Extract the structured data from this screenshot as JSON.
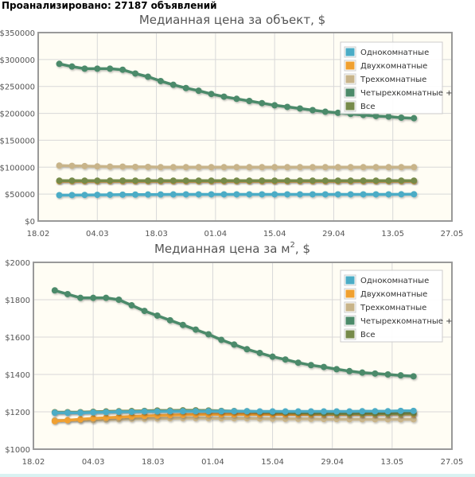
{
  "header": {
    "label": "Проанализировано:",
    "count": "27187",
    "unit": "объявлений"
  },
  "colors": {
    "odno": "#4bacc6",
    "dvuh": "#f0a030",
    "treh": "#c8b48a",
    "chetyreh": "#4b8a6a",
    "vse": "#768a4a",
    "plot_bg": "#fffdf4",
    "grid": "#d8d8d8",
    "frame": "#999999"
  },
  "legend_items": [
    {
      "name": "Однокомнатные",
      "color": "#4bacc6"
    },
    {
      "name": "Двухкомнатные",
      "color": "#f0a030"
    },
    {
      "name": "Трехкомнатные",
      "color": "#c8b48a"
    },
    {
      "name": "Четырехкомнатные +",
      "color": "#4b8a6a"
    },
    {
      "name": "Все",
      "color": "#768a4a"
    }
  ],
  "chart_data": [
    {
      "type": "line",
      "title": "Медианная цена за объект, $",
      "title_main": "Медианная цена за объект, $",
      "title_sup": "",
      "title_after": "",
      "x_ticks": [
        "18.02",
        "04.03",
        "18.03",
        "01.04",
        "15.04",
        "29.04",
        "13.05",
        "27.05"
      ],
      "y_ticks": [
        "$0",
        "$50000",
        "$100000",
        "$150000",
        "$200000",
        "$250000",
        "$300000",
        "$350000"
      ],
      "xlim": [
        "18.02",
        "27.05"
      ],
      "ylim": [
        0,
        350000
      ],
      "legend": "top-right",
      "grid": true,
      "x": [
        "23.02",
        "26.02",
        "01.03",
        "04.03",
        "07.03",
        "10.03",
        "13.03",
        "16.03",
        "19.03",
        "22.03",
        "25.03",
        "28.03",
        "31.03",
        "03.04",
        "06.04",
        "09.04",
        "12.04",
        "15.04",
        "18.04",
        "21.04",
        "24.04",
        "27.04",
        "30.04",
        "03.05",
        "06.05",
        "09.05",
        "12.05",
        "15.05",
        "18.05"
      ],
      "series": [
        {
          "name": "Однокомнатные",
          "values": [
            48000,
            48200,
            48400,
            48600,
            48800,
            49000,
            49100,
            49200,
            49300,
            49400,
            49500,
            49500,
            49500,
            49500,
            49500,
            49500,
            49500,
            49500,
            49500,
            49500,
            49500,
            49500,
            49500,
            49500,
            49500,
            49500,
            49500,
            49600,
            49700
          ]
        },
        {
          "name": "Двухкомнатные",
          "values": [
            74000,
            74000,
            74000,
            74000,
            74000,
            74000,
            74000,
            74000,
            74000,
            74000,
            74000,
            74000,
            74000,
            74000,
            74000,
            74000,
            74000,
            74000,
            74000,
            74000,
            74000,
            74000,
            74000,
            74000,
            74000,
            74000,
            74000,
            74000,
            74000
          ]
        },
        {
          "name": "Трехкомнатные",
          "values": [
            103000,
            102500,
            102000,
            101500,
            101000,
            101000,
            100500,
            100500,
            100000,
            100000,
            100000,
            100000,
            100000,
            100000,
            100000,
            100000,
            100000,
            100000,
            100000,
            100000,
            100000,
            100000,
            100000,
            100000,
            100000,
            100000,
            100000,
            100000,
            100000
          ]
        },
        {
          "name": "Четырехкомнатные +",
          "values": [
            292000,
            287000,
            283000,
            283000,
            283000,
            281000,
            274000,
            268000,
            260000,
            253000,
            247000,
            242000,
            236000,
            231000,
            227000,
            223000,
            219000,
            215000,
            212000,
            209000,
            206000,
            203000,
            201000,
            199000,
            197000,
            195000,
            194000,
            192000,
            191000
          ]
        },
        {
          "name": "Все",
          "values": [
            75000,
            75000,
            75000,
            75000,
            75000,
            75000,
            75000,
            75000,
            75000,
            75000,
            75000,
            75000,
            75000,
            75000,
            75000,
            75000,
            75000,
            75000,
            75000,
            75000,
            75000,
            75000,
            75000,
            75000,
            75000,
            75000,
            75000,
            75000,
            75000
          ]
        }
      ]
    },
    {
      "type": "line",
      "title": "Медианная цена за м2, $",
      "title_main": "Медианная цена за м",
      "title_sup": "2",
      "title_after": ", $",
      "x_ticks": [
        "18.02",
        "04.03",
        "18.03",
        "01.04",
        "15.04",
        "29.04",
        "13.05",
        "27.05"
      ],
      "y_ticks": [
        "$1000",
        "$1200",
        "$1400",
        "$1600",
        "$1800",
        "$2000"
      ],
      "xlim": [
        "18.02",
        "27.05"
      ],
      "ylim": [
        1000,
        2000
      ],
      "legend": "top-right",
      "grid": true,
      "x": [
        "23.02",
        "26.02",
        "01.03",
        "04.03",
        "07.03",
        "10.03",
        "13.03",
        "16.03",
        "19.03",
        "22.03",
        "25.03",
        "28.03",
        "31.03",
        "03.04",
        "06.04",
        "09.04",
        "12.04",
        "15.04",
        "18.04",
        "21.04",
        "24.04",
        "27.04",
        "30.04",
        "03.05",
        "06.05",
        "09.05",
        "12.05",
        "15.05",
        "18.05"
      ],
      "series": [
        {
          "name": "Однокомнатные",
          "values": [
            1195,
            1195,
            1195,
            1197,
            1198,
            1200,
            1200,
            1202,
            1202,
            1203,
            1203,
            1203,
            1203,
            1203,
            1203,
            1203,
            1202,
            1202,
            1202,
            1202,
            1202,
            1202,
            1202,
            1202,
            1203,
            1203,
            1203,
            1205,
            1205
          ]
        },
        {
          "name": "Двухкомнатные",
          "values": [
            1150,
            1155,
            1160,
            1165,
            1168,
            1172,
            1175,
            1178,
            1180,
            1182,
            1184,
            1185,
            1186,
            1186,
            1186,
            1186,
            1186,
            1186,
            1186,
            1186,
            1186,
            1187,
            1187,
            1187,
            1187,
            1187,
            1188,
            1188,
            1188
          ]
        },
        {
          "name": "Трехкомнатные",
          "values": [
            1155,
            1155,
            1155,
            1155,
            1158,
            1160,
            1162,
            1163,
            1164,
            1165,
            1166,
            1166,
            1166,
            1165,
            1165,
            1165,
            1164,
            1163,
            1162,
            1162,
            1162,
            1161,
            1161,
            1160,
            1160,
            1160,
            1160,
            1160,
            1160
          ]
        },
        {
          "name": "Четырехкомнатные +",
          "values": [
            1850,
            1830,
            1810,
            1810,
            1810,
            1800,
            1770,
            1740,
            1715,
            1690,
            1665,
            1640,
            1615,
            1585,
            1560,
            1535,
            1515,
            1495,
            1480,
            1463,
            1450,
            1440,
            1428,
            1418,
            1410,
            1405,
            1400,
            1395,
            1390
          ]
        },
        {
          "name": "Все",
          "values": [
            1198,
            1198,
            1198,
            1200,
            1202,
            1203,
            1204,
            1205,
            1207,
            1207,
            1208,
            1208,
            1207,
            1205,
            1204,
            1203,
            1200,
            1198,
            1197,
            1195,
            1193,
            1192,
            1191,
            1190,
            1190,
            1190,
            1190,
            1190,
            1192
          ]
        }
      ]
    }
  ]
}
